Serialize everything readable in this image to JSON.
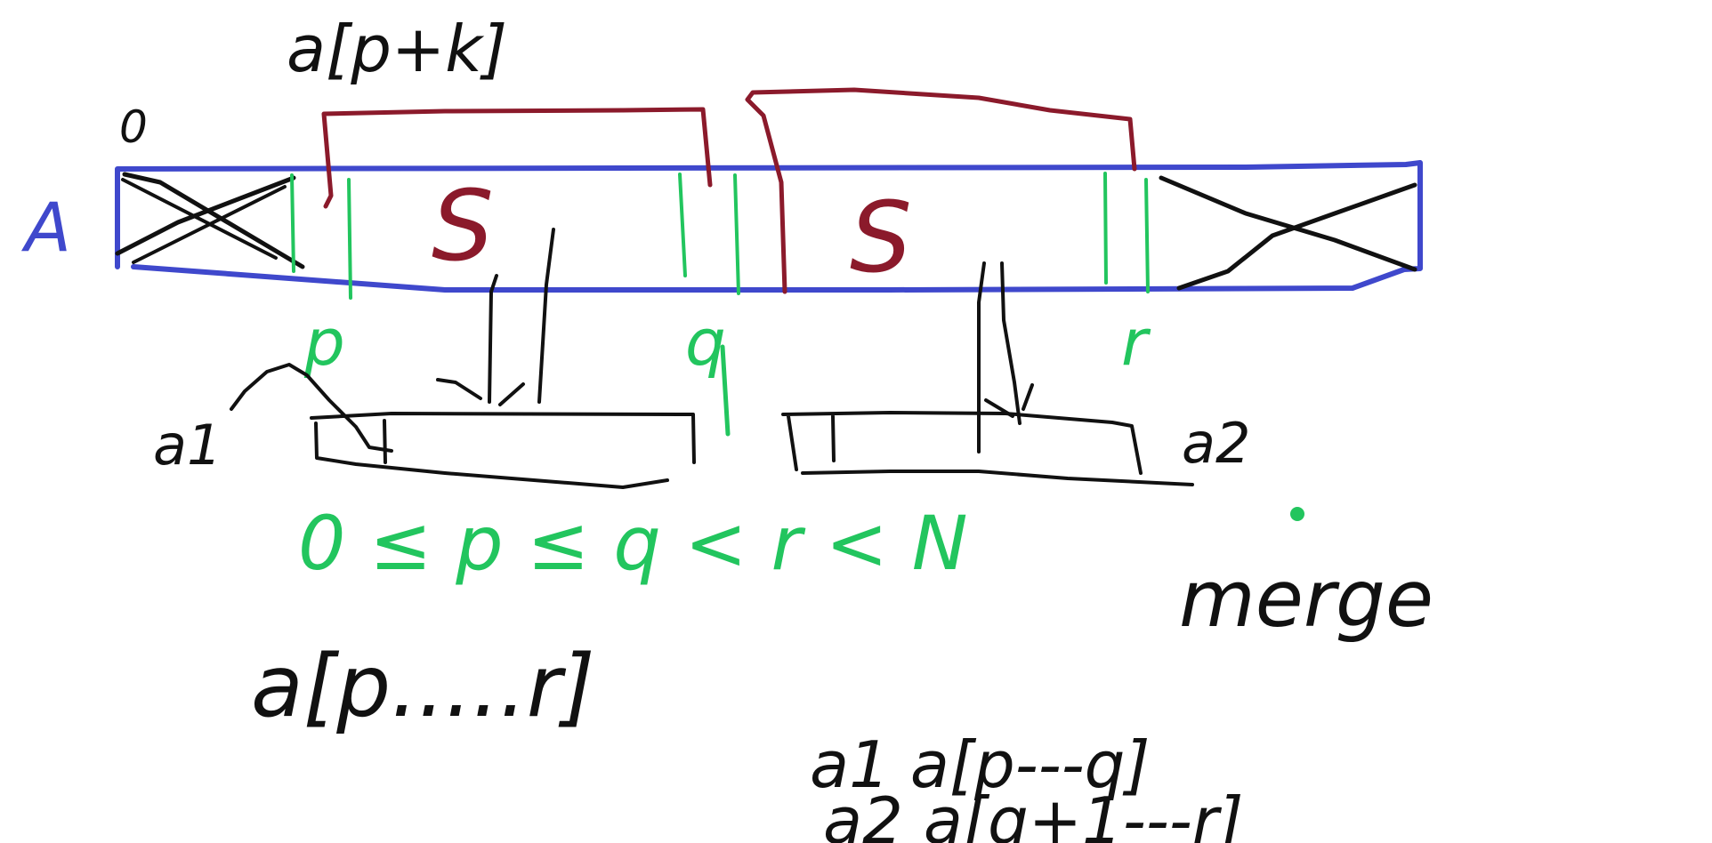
{
  "colors": {
    "array": "#3f48cc",
    "bracket": "#8b1a2b",
    "index": "#22c55e",
    "ink": "#111111",
    "background": "#ffffff"
  },
  "labels": {
    "array_name": "A",
    "zero_marker": "0",
    "top_expression": "a[p+k]",
    "left_segment_letter": "S",
    "right_segment_letter": "S",
    "index_p": "p",
    "index_q": "q",
    "index_r": "r",
    "temp_left": "a1",
    "temp_right": "a2",
    "inequality": "0 ≤ p ≤ q < r < N",
    "range_expression": "a[p.....r]",
    "merge_word": "merge",
    "assign_left": "a1  a[p---q]",
    "assign_right": "a2  a[q+1---r]"
  }
}
